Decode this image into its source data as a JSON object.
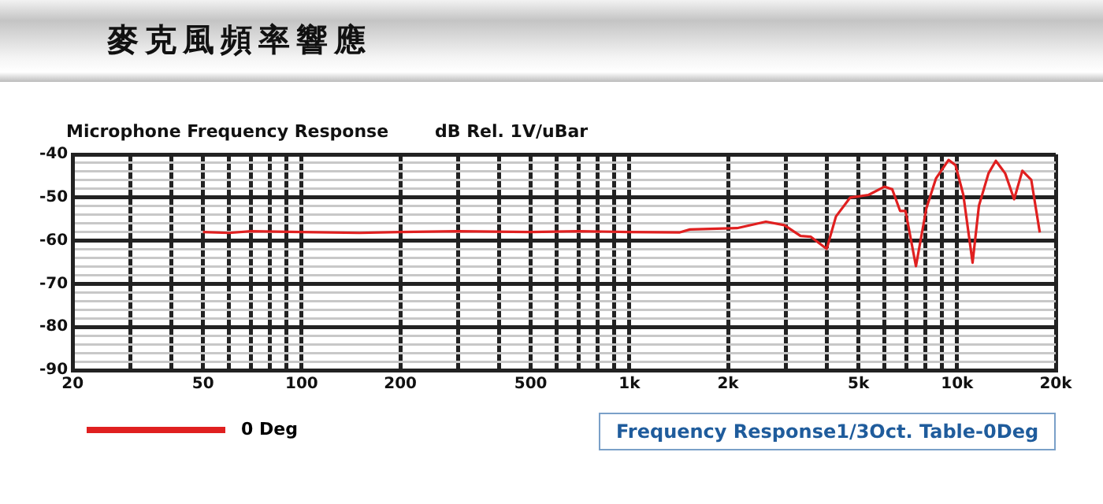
{
  "chart_data": {
    "type": "line",
    "title": "麥克風頻率響應",
    "subtitle": "Microphone Frequency Response",
    "ylabel": "dB Rel. 1V/uBar",
    "annotations": [
      "Frequency Response1/3Oct. Table-0Deg"
    ],
    "log": "x",
    "grid": true,
    "legend": "bottom left",
    "marker": "none",
    "line_style": "solid",
    "xlim": [
      20,
      20000
    ],
    "ylim": [
      -90,
      -40
    ],
    "xticks": [
      20,
      {
        "value": 30,
        "label": null
      },
      {
        "value": 40,
        "label": null
      },
      50,
      {
        "value": 60,
        "label": null
      },
      {
        "value": 70,
        "label": null
      },
      {
        "value": 80,
        "label": null
      },
      {
        "value": 90,
        "label": null
      },
      100,
      200,
      {
        "value": 300,
        "label": null
      },
      {
        "value": 400,
        "label": null
      },
      500,
      {
        "value": 600,
        "label": null
      },
      {
        "value": 700,
        "label": null
      },
      {
        "value": 800,
        "label": null
      },
      {
        "value": 900,
        "label": null
      },
      {
        "value": 1000,
        "label": "1k"
      },
      {
        "value": 2000,
        "label": "2k"
      },
      {
        "value": 3000,
        "label": null
      },
      {
        "value": 4000,
        "label": null
      },
      {
        "value": 5000,
        "label": "5k"
      },
      {
        "value": 6000,
        "label": null
      },
      {
        "value": 7000,
        "label": null
      },
      {
        "value": 8000,
        "label": null
      },
      {
        "value": 9000,
        "label": null
      },
      {
        "value": 10000,
        "label": "10k"
      },
      {
        "value": 20000,
        "label": "20k"
      }
    ],
    "yticks": [
      -90,
      {
        "value": -88,
        "label": null
      },
      {
        "value": -86,
        "label": null
      },
      {
        "value": -84,
        "label": null
      },
      {
        "value": -82,
        "label": null
      },
      -80,
      {
        "value": -78,
        "label": null
      },
      {
        "value": -76,
        "label": null
      },
      {
        "value": -74,
        "label": null
      },
      {
        "value": -72,
        "label": null
      },
      -70,
      {
        "value": -68,
        "label": null
      },
      {
        "value": -66,
        "label": null
      },
      {
        "value": -64,
        "label": null
      },
      {
        "value": -62,
        "label": null
      },
      -60,
      {
        "value": -58,
        "label": null
      },
      {
        "value": -56,
        "label": null
      },
      {
        "value": -54,
        "label": null
      },
      {
        "value": -52,
        "label": null
      },
      -50,
      {
        "value": -48,
        "label": null
      },
      {
        "value": -46,
        "label": null
      },
      {
        "value": -44,
        "label": null
      },
      {
        "value": -42,
        "label": null
      },
      -40
    ],
    "x": [
      50,
      60,
      70,
      100,
      150,
      200,
      300,
      500,
      700,
      1000,
      1420,
      1530,
      2130,
      2610,
      2970,
      3330,
      3580,
      4000,
      4270,
      4720,
      5370,
      6000,
      6340,
      6700,
      6960,
      7490,
      8060,
      8620,
      9420,
      9890,
      10450,
      11150,
      11660,
      12470,
      13130,
      14020,
      14930,
      15820,
      16840,
      17880
    ],
    "series": [
      {
        "name": "0 Deg",
        "color": "#e02020",
        "values": [
          -58,
          -58.2,
          -57.8,
          -58,
          -58.2,
          -58,
          -57.8,
          -58,
          -57.8,
          -58,
          -58.1,
          -57.4,
          -57.1,
          -55.6,
          -56.4,
          -58.9,
          -59.1,
          -61.9,
          -54.4,
          -50,
          -49.4,
          -47.5,
          -48.1,
          -53.1,
          -53.1,
          -65.9,
          -52.5,
          -45.6,
          -41.3,
          -42.5,
          -49.4,
          -65.1,
          -51.9,
          -44.4,
          -41.5,
          -44.4,
          -50.4,
          -43.8,
          -45.9,
          -58.1
        ]
      }
    ]
  }
}
